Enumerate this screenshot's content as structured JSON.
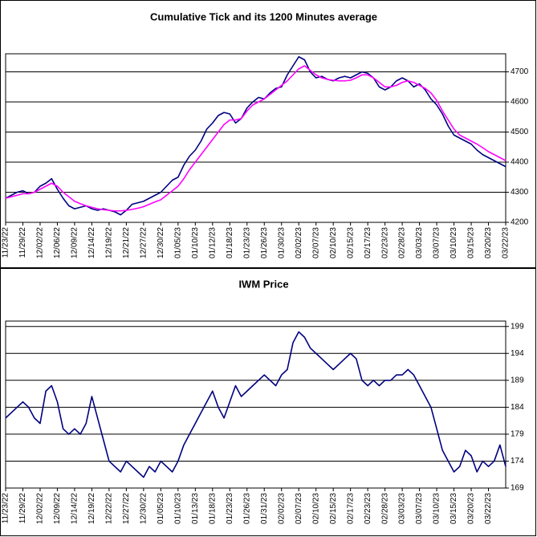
{
  "chart_data": [
    {
      "type": "line",
      "title": "Cumulative Tick and its 1200 Minutes average",
      "categories": [
        "11/23/22",
        null,
        null,
        "11/29/22",
        null,
        null,
        "12/02/22",
        null,
        null,
        "12/06/22",
        null,
        null,
        "12/09/22",
        null,
        null,
        "12/14/22",
        null,
        null,
        "12/19/22",
        null,
        null,
        "12/21/22",
        null,
        null,
        "12/27/22",
        null,
        null,
        "12/30/22",
        null,
        null,
        "01/05/23",
        null,
        null,
        "01/10/23",
        null,
        null,
        "01/12/23",
        null,
        null,
        "01/18/23",
        null,
        null,
        "01/23/23",
        null,
        null,
        "01/26/23",
        null,
        null,
        "01/30/23",
        null,
        null,
        "02/02/23",
        null,
        null,
        "02/07/23",
        null,
        null,
        "02/10/23",
        null,
        null,
        "02/15/23",
        null,
        null,
        "02/17/23",
        null,
        null,
        "02/23/23",
        null,
        null,
        "02/28/23",
        null,
        null,
        "03/03/23",
        null,
        null,
        "03/07/23",
        null,
        null,
        "03/10/23",
        null,
        null,
        "03/15/23",
        null,
        null,
        "03/20/23",
        null,
        null,
        "03/22/23"
      ],
      "series": [
        {
          "color": "#000080",
          "values": [
            4280,
            4290,
            4300,
            4305,
            4295,
            4300,
            4320,
            4330,
            4345,
            4310,
            4280,
            4255,
            4245,
            4250,
            4255,
            4245,
            4240,
            4245,
            4240,
            4235,
            4225,
            4240,
            4260,
            4265,
            4270,
            4280,
            4290,
            4300,
            4320,
            4340,
            4350,
            4390,
            4420,
            4440,
            4470,
            4510,
            4530,
            4555,
            4565,
            4560,
            4530,
            4545,
            4580,
            4600,
            4615,
            4610,
            4630,
            4645,
            4650,
            4690,
            4720,
            4750,
            4740,
            4700,
            4680,
            4685,
            4675,
            4670,
            4680,
            4685,
            4680,
            4690,
            4700,
            4695,
            4680,
            4650,
            4640,
            4650,
            4670,
            4680,
            4670,
            4650,
            4660,
            4640,
            4610,
            4590,
            4560,
            4520,
            4490,
            4480,
            4470,
            4460,
            4440,
            4425,
            4415,
            4405,
            4395,
            4385
          ]
        },
        {
          "color": "#ff00ff",
          "values": [
            4280,
            4285,
            4290,
            4295,
            4295,
            4300,
            4310,
            4320,
            4330,
            4320,
            4300,
            4285,
            4270,
            4262,
            4255,
            4250,
            4245,
            4242,
            4240,
            4238,
            4238,
            4240,
            4243,
            4247,
            4252,
            4260,
            4268,
            4275,
            4290,
            4305,
            4320,
            4345,
            4375,
            4400,
            4425,
            4450,
            4475,
            4500,
            4525,
            4540,
            4540,
            4545,
            4570,
            4590,
            4600,
            4610,
            4625,
            4640,
            4655,
            4670,
            4690,
            4710,
            4720,
            4705,
            4690,
            4680,
            4675,
            4672,
            4670,
            4670,
            4672,
            4680,
            4690,
            4690,
            4680,
            4665,
            4650,
            4650,
            4655,
            4665,
            4670,
            4665,
            4655,
            4645,
            4630,
            4605,
            4570,
            4540,
            4510,
            4490,
            4480,
            4470,
            4460,
            4448,
            4435,
            4425,
            4415,
            4405
          ]
        }
      ],
      "ylim": [
        4200,
        4760
      ],
      "yticks": [
        4200,
        4300,
        4400,
        4500,
        4600,
        4700
      ],
      "grid": true
    },
    {
      "type": "line",
      "title": "IWM Price",
      "categories": [
        "11/23/22",
        null,
        null,
        "11/29/22",
        null,
        null,
        "12/02/22",
        null,
        null,
        "12/09/22",
        null,
        null,
        "12/14/22",
        null,
        null,
        "12/19/22",
        null,
        null,
        "12/22/22",
        null,
        null,
        "12/27/22",
        null,
        null,
        "12/30/22",
        null,
        null,
        "01/05/23",
        null,
        null,
        "01/10/23",
        null,
        null,
        "01/13/23",
        null,
        null,
        "01/18/23",
        null,
        null,
        "01/23/23",
        null,
        null,
        "01/26/23",
        null,
        null,
        "01/31/23",
        null,
        null,
        "02/02/23",
        null,
        null,
        "02/07/23",
        null,
        null,
        "02/10/23",
        null,
        null,
        "02/15/23",
        null,
        null,
        "02/17/23",
        null,
        null,
        "02/23/23",
        null,
        null,
        "02/28/23",
        null,
        null,
        "03/03/23",
        null,
        null,
        "03/07/23",
        null,
        null,
        "03/10/23",
        null,
        null,
        "03/15/23",
        null,
        null,
        "03/20/23",
        null,
        null,
        "03/22/23",
        null,
        null,
        null
      ],
      "series": [
        {
          "color": "#000080",
          "values": [
            182,
            183,
            184,
            185,
            184,
            182,
            181,
            187,
            188,
            185,
            180,
            179,
            180,
            179,
            181,
            186,
            182,
            178,
            174,
            173,
            172,
            174,
            173,
            172,
            171,
            173,
            172,
            174,
            173,
            172,
            174,
            177,
            179,
            181,
            183,
            185,
            187,
            184,
            182,
            185,
            188,
            186,
            187,
            188,
            189,
            190,
            189,
            188,
            190,
            191,
            196,
            198,
            197,
            195,
            194,
            193,
            192,
            191,
            192,
            193,
            194,
            193,
            189,
            188,
            189,
            188,
            189,
            189,
            190,
            190,
            191,
            190,
            188,
            186,
            184,
            180,
            176,
            174,
            172,
            173,
            176,
            175,
            172,
            174,
            173,
            174,
            177,
            173
          ]
        }
      ],
      "ylim": [
        169,
        200
      ],
      "yticks": [
        169,
        174,
        179,
        184,
        189,
        194,
        199
      ],
      "grid": true
    }
  ]
}
